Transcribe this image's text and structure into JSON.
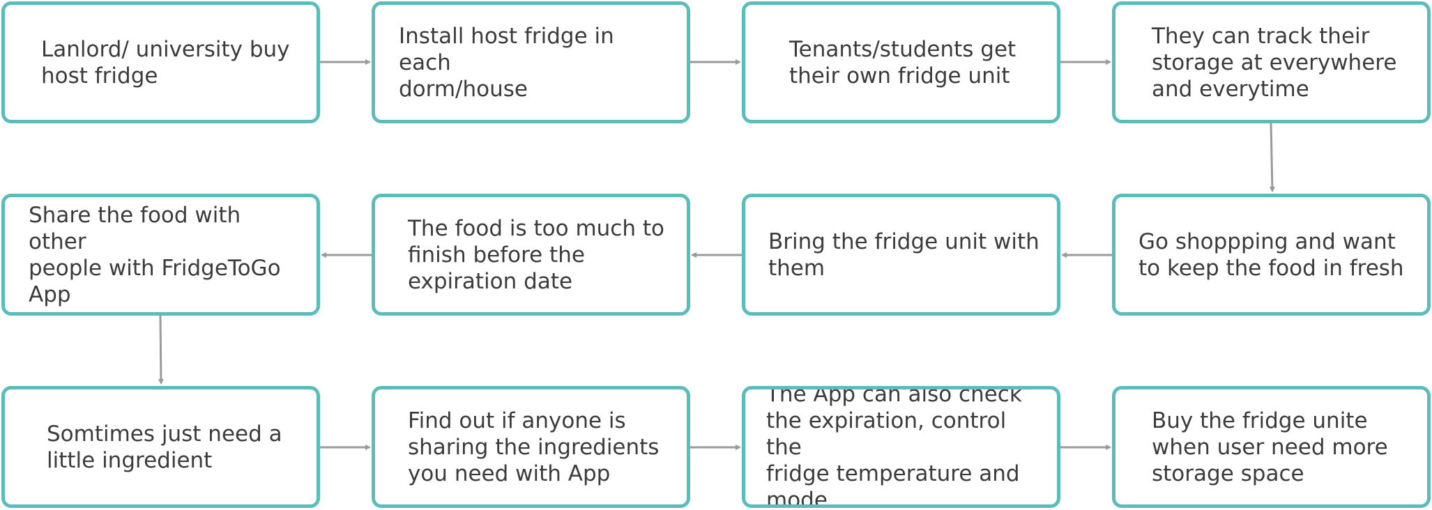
{
  "diagram": {
    "steps": [
      {
        "id": "s1",
        "label": "Lanlord/ university buy\nhost fridge"
      },
      {
        "id": "s2",
        "label": "Install host fridge in each\ndorm/house"
      },
      {
        "id": "s3",
        "label": "Tenants/students get\ntheir own fridge unit"
      },
      {
        "id": "s4",
        "label": "They can track their\nstorage at everywhere\nand everytime"
      },
      {
        "id": "s5",
        "label": "Go shoppping and want\nto keep the food in fresh"
      },
      {
        "id": "s6",
        "label": "Bring the fridge unit with\nthem"
      },
      {
        "id": "s7",
        "label": "The food is too much to\nfinish before the\nexpiration date"
      },
      {
        "id": "s8",
        "label": "Share the food with other\npeople with FridgeToGo\nApp"
      },
      {
        "id": "s9",
        "label": "Somtimes just need a\nlittle ingredient"
      },
      {
        "id": "s10",
        "label": "Find out if anyone is\nsharing the ingredients\nyou need with App"
      },
      {
        "id": "s11",
        "label": "The App can also check\nthe expiration, control the\nfridge temperature and\nmode"
      },
      {
        "id": "s12",
        "label": "Buy the fridge unite\nwhen user need more\nstorage space"
      }
    ],
    "edges": [
      {
        "from": "s1",
        "to": "s2"
      },
      {
        "from": "s2",
        "to": "s3"
      },
      {
        "from": "s3",
        "to": "s4"
      },
      {
        "from": "s4",
        "to": "s5"
      },
      {
        "from": "s5",
        "to": "s6"
      },
      {
        "from": "s6",
        "to": "s7"
      },
      {
        "from": "s7",
        "to": "s8"
      },
      {
        "from": "s8",
        "to": "s9"
      },
      {
        "from": "s9",
        "to": "s10"
      },
      {
        "from": "s10",
        "to": "s11"
      },
      {
        "from": "s11",
        "to": "s12"
      }
    ],
    "colors": {
      "box_border": "#5bbcbc",
      "arrow": "#9a9a9a",
      "text": "#3b3b3b"
    }
  }
}
